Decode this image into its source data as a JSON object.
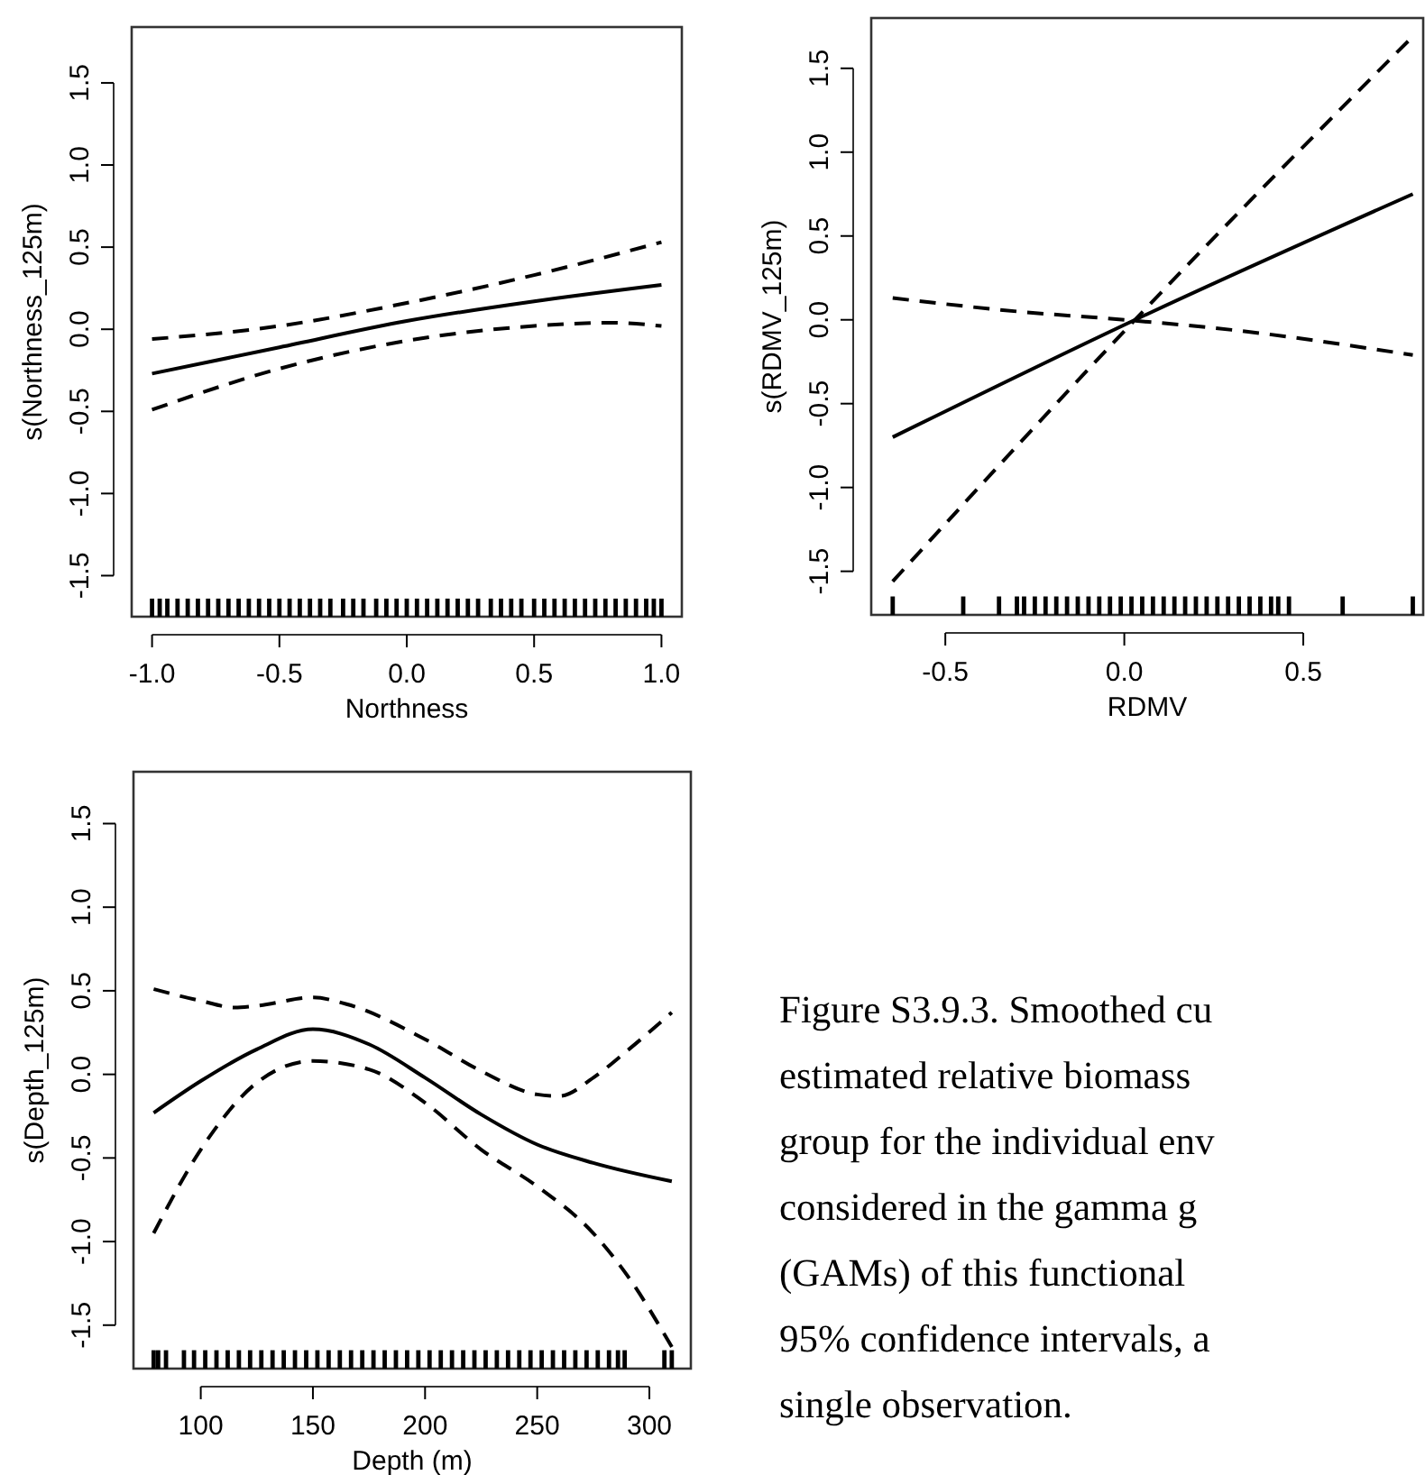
{
  "chart_data": [
    {
      "type": "line",
      "xlabel": "Northness",
      "ylabel": "s(Northness_125m)",
      "xlim": [
        -1.08,
        1.08
      ],
      "ylim": [
        -1.75,
        1.84
      ],
      "xticks": [
        {
          "value": -1,
          "label": "-1.0"
        },
        {
          "value": -0.5,
          "label": "-0.5"
        },
        {
          "value": 0,
          "label": "0.0"
        },
        {
          "value": 0.5,
          "label": "0.5"
        },
        {
          "value": 1,
          "label": "1.0"
        }
      ],
      "yticks": [
        {
          "value": -1.5,
          "label": "-1.5"
        },
        {
          "value": -1,
          "label": "-1.0"
        },
        {
          "value": -0.5,
          "label": "-0.5"
        },
        {
          "value": 0,
          "label": "0.0"
        },
        {
          "value": 0.5,
          "label": "0.5"
        },
        {
          "value": 1,
          "label": "1.0"
        },
        {
          "value": 1.5,
          "label": "1.5"
        }
      ],
      "grid": false,
      "series": [
        {
          "color": "#000000",
          "line_style": "solid",
          "x": [
            -1,
            -0.5,
            0,
            0.5,
            1
          ],
          "values": [
            -0.27,
            -0.11,
            0.05,
            0.17,
            0.27
          ]
        },
        {
          "color": "#000000",
          "line_style": "dashed",
          "x": [
            -1,
            -0.5,
            0,
            0.5,
            1
          ],
          "values": [
            -0.06,
            0.02,
            0.16,
            0.33,
            0.53
          ]
        },
        {
          "color": "#000000",
          "line_style": "dashed",
          "x": [
            -1,
            -0.5,
            0,
            0.5,
            0.8,
            1
          ],
          "values": [
            -0.49,
            -0.24,
            -0.07,
            0.02,
            0.04,
            0.02
          ]
        },
        {
          "type": "bar",
          "color": "#000000",
          "x": [
            -1,
            -0.97,
            -0.94,
            -0.9,
            -0.86,
            -0.82,
            -0.78,
            -0.74,
            -0.7,
            -0.66,
            -0.62,
            -0.58,
            -0.54,
            -0.5,
            -0.46,
            -0.42,
            -0.38,
            -0.34,
            -0.3,
            -0.25,
            -0.21,
            -0.17,
            -0.12,
            -0.08,
            -0.04,
            0,
            0.04,
            0.08,
            0.12,
            0.16,
            0.2,
            0.24,
            0.28,
            0.33,
            0.37,
            0.41,
            0.45,
            0.5,
            0.54,
            0.58,
            0.62,
            0.66,
            0.7,
            0.74,
            0.78,
            0.82,
            0.86,
            0.9,
            0.94,
            0.97,
            1
          ],
          "base": [
            -1.75,
            -1.75,
            -1.75,
            -1.75,
            -1.75,
            -1.75,
            -1.75,
            -1.75,
            -1.75,
            -1.75,
            -1.75,
            -1.75,
            -1.75,
            -1.75,
            -1.75,
            -1.75,
            -1.75,
            -1.75,
            -1.75,
            -1.75,
            -1.75,
            -1.75,
            -1.75,
            -1.75,
            -1.75,
            -1.75,
            -1.75,
            -1.75,
            -1.75,
            -1.75,
            -1.75,
            -1.75,
            -1.75,
            -1.75,
            -1.75,
            -1.75,
            -1.75,
            -1.75,
            -1.75,
            -1.75,
            -1.75,
            -1.75,
            -1.75,
            -1.75,
            -1.75,
            -1.75,
            -1.75,
            -1.75,
            -1.75,
            -1.75,
            -1.75
          ],
          "values": [
            0.11,
            0.11,
            0.11,
            0.11,
            0.11,
            0.11,
            0.11,
            0.11,
            0.11,
            0.11,
            0.11,
            0.11,
            0.11,
            0.11,
            0.11,
            0.11,
            0.11,
            0.11,
            0.11,
            0.11,
            0.11,
            0.11,
            0.11,
            0.11,
            0.11,
            0.11,
            0.11,
            0.11,
            0.11,
            0.11,
            0.11,
            0.11,
            0.11,
            0.11,
            0.11,
            0.11,
            0.11,
            0.11,
            0.11,
            0.11,
            0.11,
            0.11,
            0.11,
            0.11,
            0.11,
            0.11,
            0.11,
            0.11,
            0.11,
            0.11,
            0.11
          ]
        }
      ]
    },
    {
      "type": "line",
      "xlabel": "RDMV",
      "ylabel": "s(RDMV_125m)",
      "xlim": [
        -0.707,
        0.835
      ],
      "ylim": [
        -1.76,
        1.8
      ],
      "xticks": [
        {
          "value": -0.5,
          "label": "-0.5"
        },
        {
          "value": 0,
          "label": "0.0"
        },
        {
          "value": 0.5,
          "label": "0.5"
        }
      ],
      "yticks": [
        {
          "value": -1.5,
          "label": "-1.5"
        },
        {
          "value": -1,
          "label": "-1.0"
        },
        {
          "value": -0.5,
          "label": "-0.5"
        },
        {
          "value": 0,
          "label": "0.0"
        },
        {
          "value": 0.5,
          "label": "0.5"
        },
        {
          "value": 1,
          "label": "1.0"
        },
        {
          "value": 1.5,
          "label": "1.5"
        }
      ],
      "grid": false,
      "series": [
        {
          "color": "#000000",
          "line_style": "solid",
          "x": [
            -0.647,
            0.03,
            0.806
          ],
          "values": [
            -0.7,
            0,
            0.75
          ]
        },
        {
          "color": "#000000",
          "line_style": "dashed",
          "x": [
            -0.647,
            0.03,
            0.806
          ],
          "values": [
            -1.56,
            0,
            1.69
          ]
        },
        {
          "color": "#000000",
          "line_style": "dashed",
          "x": [
            -0.647,
            -0.3,
            0,
            0.3,
            0.806
          ],
          "values": [
            0.13,
            0.05,
            0,
            -0.06,
            -0.21
          ]
        },
        {
          "type": "bar",
          "color": "#000000",
          "x": [
            -0.647,
            -0.45,
            -0.35,
            -0.3,
            -0.28,
            -0.25,
            -0.22,
            -0.19,
            -0.16,
            -0.13,
            -0.1,
            -0.07,
            -0.04,
            -0.01,
            0.02,
            0.05,
            0.08,
            0.11,
            0.14,
            0.17,
            0.2,
            0.23,
            0.26,
            0.29,
            0.32,
            0.35,
            0.38,
            0.41,
            0.43,
            0.46,
            0.61,
            0.806
          ],
          "base": [
            -1.76,
            -1.76,
            -1.76,
            -1.76,
            -1.76,
            -1.76,
            -1.76,
            -1.76,
            -1.76,
            -1.76,
            -1.76,
            -1.76,
            -1.76,
            -1.76,
            -1.76,
            -1.76,
            -1.76,
            -1.76,
            -1.76,
            -1.76,
            -1.76,
            -1.76,
            -1.76,
            -1.76,
            -1.76,
            -1.76,
            -1.76,
            -1.76,
            -1.76,
            -1.76,
            -1.76,
            -1.76
          ],
          "values": [
            0.11,
            0.11,
            0.11,
            0.11,
            0.11,
            0.11,
            0.11,
            0.11,
            0.11,
            0.11,
            0.11,
            0.11,
            0.11,
            0.11,
            0.11,
            0.11,
            0.11,
            0.11,
            0.11,
            0.11,
            0.11,
            0.11,
            0.11,
            0.11,
            0.11,
            0.11,
            0.11,
            0.11,
            0.11,
            0.11,
            0.11,
            0.11
          ]
        }
      ]
    },
    {
      "type": "line",
      "xlabel": "Depth (m)",
      "ylabel": "s(Depth_125m)",
      "xlim": [
        70,
        318.5
      ],
      "ylim": [
        -1.76,
        1.81
      ],
      "xticks": [
        100,
        150,
        200,
        250,
        300
      ],
      "yticks": [
        {
          "value": -1.5,
          "label": "-1.5"
        },
        {
          "value": -1,
          "label": "-1.0"
        },
        {
          "value": -0.5,
          "label": "-0.5"
        },
        {
          "value": 0,
          "label": "0.0"
        },
        {
          "value": 0.5,
          "label": "0.5"
        },
        {
          "value": 1,
          "label": "1.0"
        },
        {
          "value": 1.5,
          "label": "1.5"
        }
      ],
      "grid": false,
      "series": [
        {
          "color": "#000000",
          "line_style": "solid",
          "x": [
            79,
            100,
            125,
            150,
            175,
            200,
            225,
            250,
            275,
            310
          ],
          "values": [
            -0.23,
            -0.04,
            0.15,
            0.27,
            0.18,
            -0.02,
            -0.24,
            -0.42,
            -0.53,
            -0.64
          ]
        },
        {
          "color": "#000000",
          "line_style": "dashed",
          "x": [
            79,
            100,
            115,
            125,
            150,
            165,
            200,
            225,
            250,
            260,
            275,
            290,
            310
          ],
          "values": [
            0.51,
            0.44,
            0.4,
            0.41,
            0.46,
            0.42,
            0.21,
            0.02,
            -0.12,
            -0.13,
            -0.02,
            0.14,
            0.37
          ]
        },
        {
          "color": "#000000",
          "line_style": "dashed",
          "x": [
            79,
            100,
            125,
            150,
            175,
            200,
            225,
            250,
            275,
            290,
            310
          ],
          "values": [
            -0.95,
            -0.45,
            -0.05,
            0.08,
            0.03,
            -0.17,
            -0.45,
            -0.67,
            -0.95,
            -1.2,
            -1.63
          ]
        },
        {
          "type": "bar",
          "color": "#000000",
          "x": [
            79,
            81,
            84.5,
            92.5,
            97,
            102,
            107,
            112,
            117,
            122,
            127,
            132,
            137,
            142,
            147,
            152,
            157,
            162,
            167,
            172,
            177,
            182,
            187,
            192,
            197,
            202,
            207,
            212,
            217,
            222,
            227,
            232,
            237,
            242,
            247,
            252,
            257,
            262,
            267,
            272,
            277,
            282,
            286,
            289,
            306.7,
            310
          ],
          "base": [
            -1.76,
            -1.76,
            -1.76,
            -1.76,
            -1.76,
            -1.76,
            -1.76,
            -1.76,
            -1.76,
            -1.76,
            -1.76,
            -1.76,
            -1.76,
            -1.76,
            -1.76,
            -1.76,
            -1.76,
            -1.76,
            -1.76,
            -1.76,
            -1.76,
            -1.76,
            -1.76,
            -1.76,
            -1.76,
            -1.76,
            -1.76,
            -1.76,
            -1.76,
            -1.76,
            -1.76,
            -1.76,
            -1.76,
            -1.76,
            -1.76,
            -1.76,
            -1.76,
            -1.76,
            -1.76,
            -1.76,
            -1.76,
            -1.76,
            -1.76,
            -1.76,
            -1.76,
            -1.76
          ],
          "values": [
            0.11,
            0.11,
            0.11,
            0.11,
            0.11,
            0.11,
            0.11,
            0.11,
            0.11,
            0.11,
            0.11,
            0.11,
            0.11,
            0.11,
            0.11,
            0.11,
            0.11,
            0.11,
            0.11,
            0.11,
            0.11,
            0.11,
            0.11,
            0.11,
            0.11,
            0.11,
            0.11,
            0.11,
            0.11,
            0.11,
            0.11,
            0.11,
            0.11,
            0.11,
            0.11,
            0.11,
            0.11,
            0.11,
            0.11,
            0.11,
            0.11,
            0.11,
            0.11,
            0.11,
            0.11,
            0.11
          ]
        }
      ]
    },
    {
      "type": "other",
      "annotations": [
        "Figure S3.9.3. Smoothed cu",
        "estimated relative biomass",
        "group for the individual env",
        "considered in the gamma g",
        "(GAMs) of this functional",
        "95% confidence intervals, a",
        "single observation."
      ]
    }
  ]
}
